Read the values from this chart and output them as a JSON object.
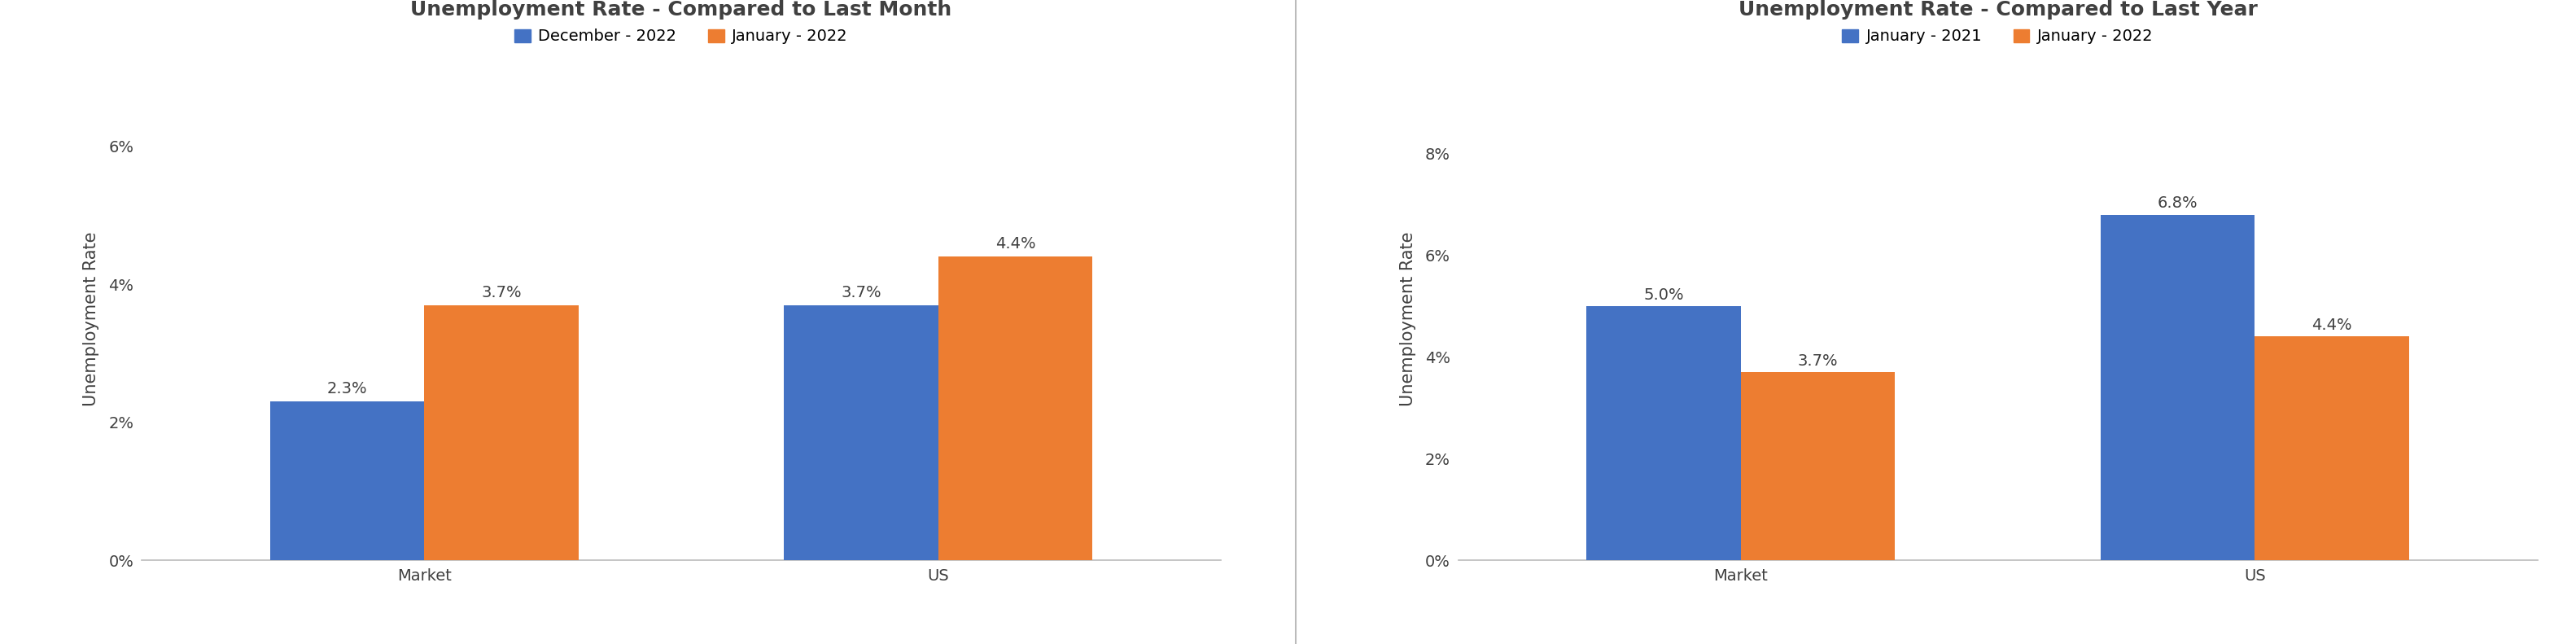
{
  "chart1": {
    "title": "Unemployment Rate - Compared to Last Month",
    "categories": [
      "Market",
      "US"
    ],
    "series": [
      {
        "label": "December - 2022",
        "values": [
          2.3,
          3.7
        ],
        "color": "#4472C4"
      },
      {
        "label": "January - 2022",
        "values": [
          3.7,
          4.4
        ],
        "color": "#ED7D31"
      }
    ],
    "ylabel": "Unemployment Rate",
    "ylim": [
      0,
      7
    ],
    "yticks": [
      0,
      2,
      4,
      6
    ],
    "ytick_labels": [
      "0%",
      "2%",
      "4%",
      "6%"
    ]
  },
  "chart2": {
    "title": "Unemployment Rate - Compared to Last Year",
    "categories": [
      "Market",
      "US"
    ],
    "series": [
      {
        "label": "January - 2021",
        "values": [
          5.0,
          6.8
        ],
        "color": "#4472C4"
      },
      {
        "label": "January - 2022",
        "values": [
          3.7,
          4.4
        ],
        "color": "#ED7D31"
      }
    ],
    "ylabel": "Unemployment Rate",
    "ylim": [
      0,
      9.5
    ],
    "yticks": [
      0,
      2,
      4,
      6,
      8
    ],
    "ytick_labels": [
      "0%",
      "2%",
      "4%",
      "6%",
      "8%"
    ]
  },
  "bar_width": 0.3,
  "title_fontsize": 18,
  "tick_fontsize": 14,
  "ylabel_fontsize": 15,
  "legend_fontsize": 14,
  "annotation_fontsize": 14,
  "background_color": "#FFFFFF",
  "divider_color": "#BBBBBB",
  "axis_color": "#BBBBBB",
  "text_color": "#404040"
}
